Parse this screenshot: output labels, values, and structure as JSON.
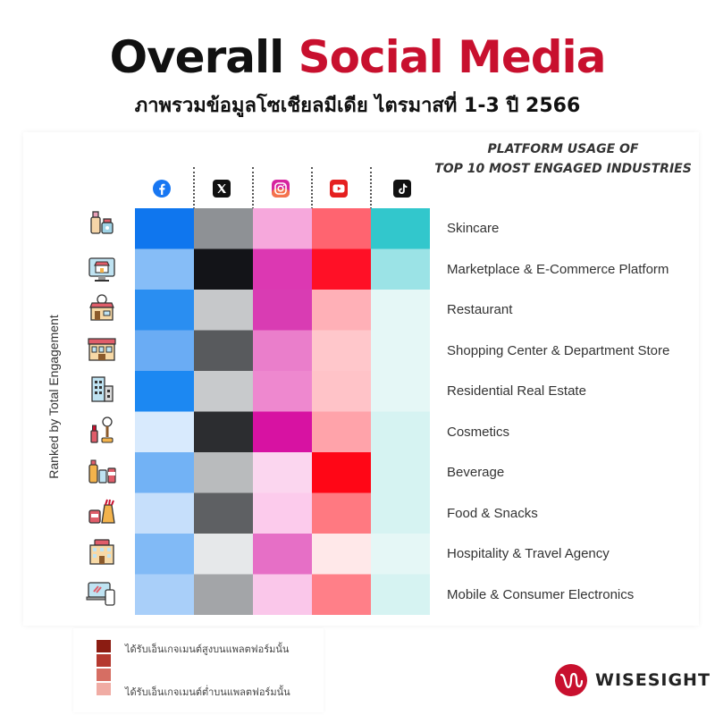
{
  "header": {
    "title_main": "Overall",
    "title_accent": "Social Media",
    "subtitle": "ภาพรวมข้อมูลโซเชียลมีเดีย ไตรมาสที่ 1-3 ปี 2566"
  },
  "colors": {
    "accent": "#c8102e"
  },
  "chart_data": {
    "type": "heatmap",
    "title_line1": "PLATFORM USAGE OF",
    "title_line2": "TOP 10 MOST ENGAGED INDUSTRIES",
    "ylabel": "Ranked by Total Engagement",
    "platforms": [
      {
        "name": "Facebook",
        "icon": "facebook-icon"
      },
      {
        "name": "X",
        "icon": "x-icon"
      },
      {
        "name": "Instagram",
        "icon": "instagram-icon"
      },
      {
        "name": "YouTube",
        "icon": "youtube-icon"
      },
      {
        "name": "TikTok",
        "icon": "tiktok-icon"
      }
    ],
    "industries": [
      {
        "name": "Skincare",
        "icon": "skincare-icon"
      },
      {
        "name": "Marketplace & E-Commerce Platform",
        "icon": "marketplace-icon"
      },
      {
        "name": "Restaurant",
        "icon": "restaurant-icon"
      },
      {
        "name": "Shopping Center & Department Store",
        "icon": "shopping-center-icon"
      },
      {
        "name": "Residential Real Estate",
        "icon": "real-estate-icon"
      },
      {
        "name": "Cosmetics",
        "icon": "cosmetics-icon"
      },
      {
        "name": "Beverage",
        "icon": "beverage-icon"
      },
      {
        "name": "Food & Snacks",
        "icon": "food-snacks-icon"
      },
      {
        "name": "Hospitality & Travel Agency",
        "icon": "hospitality-icon"
      },
      {
        "name": "Mobile & Consumer Electronics",
        "icon": "electronics-icon"
      }
    ],
    "cells": [
      [
        "#0f76ee",
        "#8e9195",
        "#f6a8dc",
        "#ff6470",
        "#32c7cc"
      ],
      [
        "#86bdf7",
        "#131418",
        "#dc38b2",
        "#ff1026",
        "#9be3e6"
      ],
      [
        "#2a8ef1",
        "#c6c8ca",
        "#d93cb3",
        "#ffb0b7",
        "#e5f7f6"
      ],
      [
        "#6aacf4",
        "#585a5d",
        "#ea7ecb",
        "#ffc7cb",
        "#e5f7f6"
      ],
      [
        "#1c88f2",
        "#c8caCc",
        "#ee88cf",
        "#ffc3c8",
        "#e5f7f6"
      ],
      [
        "#d8eafd",
        "#2c2d30",
        "#d712a2",
        "#ffa3aa",
        "#d6f3f2"
      ],
      [
        "#72b2f5",
        "#b9bbbd",
        "#fbd6ef",
        "#ff0616",
        "#d6f3f2"
      ],
      [
        "#c6dffb",
        "#5e6063",
        "#fccbec",
        "#ff7981",
        "#d6f3f2"
      ],
      [
        "#81baf6",
        "#e6e8ea",
        "#e66fc6",
        "#ffe8e9",
        "#e5f7f6"
      ],
      [
        "#a9cff9",
        "#a3a5a8",
        "#fac7ea",
        "#ff7f88",
        "#d6f3f2"
      ]
    ]
  },
  "legend": {
    "swatches": [
      "#8b1c12",
      "#b5392f",
      "#d66e63",
      "#f0aca4"
    ],
    "high_text": "ได้รับเอ็นเกจเมนต์สูงบนแพลตฟอร์มนั้น",
    "low_text": "ได้รับเอ็นเกจเมนต์ต่ำบนแพลตฟอร์มนั้น"
  },
  "brand": {
    "name": "WISESIGHT",
    "icon": "wisesight-logo-icon"
  }
}
